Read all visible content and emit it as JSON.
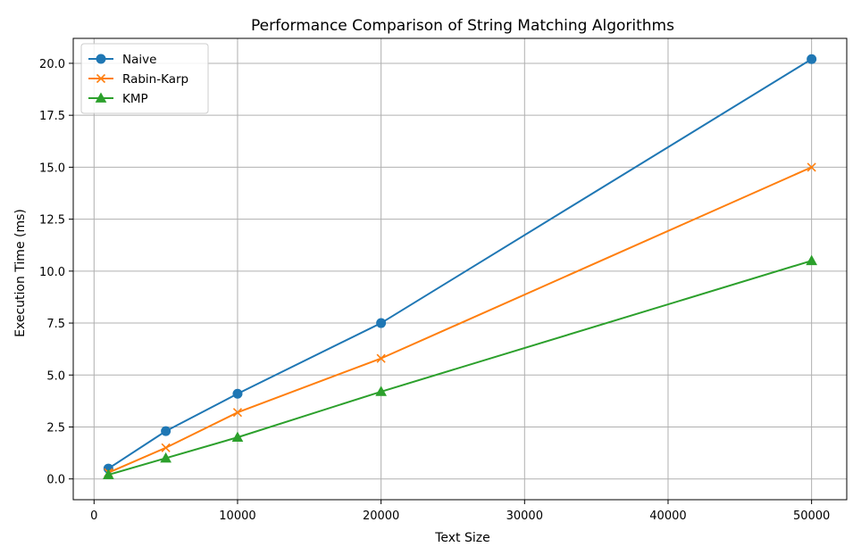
{
  "chart_data": {
    "type": "line",
    "title": "Performance Comparison of String Matching Algorithms",
    "xlabel": "Text Size",
    "ylabel": "Execution Time (ms)",
    "x": [
      1000,
      5000,
      10000,
      20000,
      50000
    ],
    "xlim": [
      -1450,
      52450
    ],
    "ylim": [
      -1.0,
      21.2
    ],
    "xticks": [
      0,
      10000,
      20000,
      30000,
      40000,
      50000
    ],
    "xtick_labels": [
      "0",
      "10000",
      "20000",
      "30000",
      "40000",
      "50000"
    ],
    "yticks": [
      0.0,
      2.5,
      5.0,
      7.5,
      10.0,
      12.5,
      15.0,
      17.5,
      20.0
    ],
    "ytick_labels": [
      "0.0",
      "2.5",
      "5.0",
      "7.5",
      "10.0",
      "12.5",
      "15.0",
      "17.5",
      "20.0"
    ],
    "grid": true,
    "legend_position": "top-left",
    "series": [
      {
        "name": "Naive",
        "values": [
          0.5,
          2.3,
          4.1,
          7.5,
          20.2
        ],
        "color": "#1f77b4",
        "marker": "circle"
      },
      {
        "name": "Rabin-Karp",
        "values": [
          0.3,
          1.5,
          3.2,
          5.8,
          15.0
        ],
        "color": "#ff7f0e",
        "marker": "x"
      },
      {
        "name": "KMP",
        "values": [
          0.2,
          1.0,
          2.0,
          4.2,
          10.5
        ],
        "color": "#2ca02c",
        "marker": "triangle"
      }
    ]
  }
}
